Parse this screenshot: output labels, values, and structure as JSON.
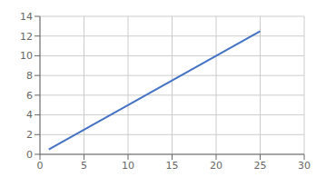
{
  "chart_data": {
    "type": "line",
    "x": [
      1,
      25
    ],
    "values": [
      0.5,
      12.5
    ],
    "color": "#4472c4",
    "xlim": [
      0,
      30
    ],
    "ylim": [
      0,
      14
    ],
    "xticks": [
      0,
      5,
      10,
      15,
      20,
      25,
      30
    ],
    "yticks": [
      0,
      2,
      4,
      6,
      8,
      10,
      12,
      14
    ],
    "grid": true
  }
}
